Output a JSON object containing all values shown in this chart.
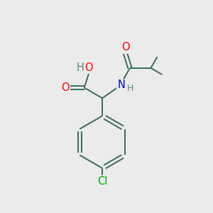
{
  "background_color": "#ebebeb",
  "bond_color": "#3a6b5a",
  "atom_colors": {
    "O": "#ff0000",
    "N": "#0000cc",
    "Cl": "#00aa00",
    "H": "#5a8a7a"
  },
  "figsize": [
    3.0,
    3.0
  ],
  "dpi": 100,
  "bond_lw": 1.4,
  "font_size": 10.5
}
